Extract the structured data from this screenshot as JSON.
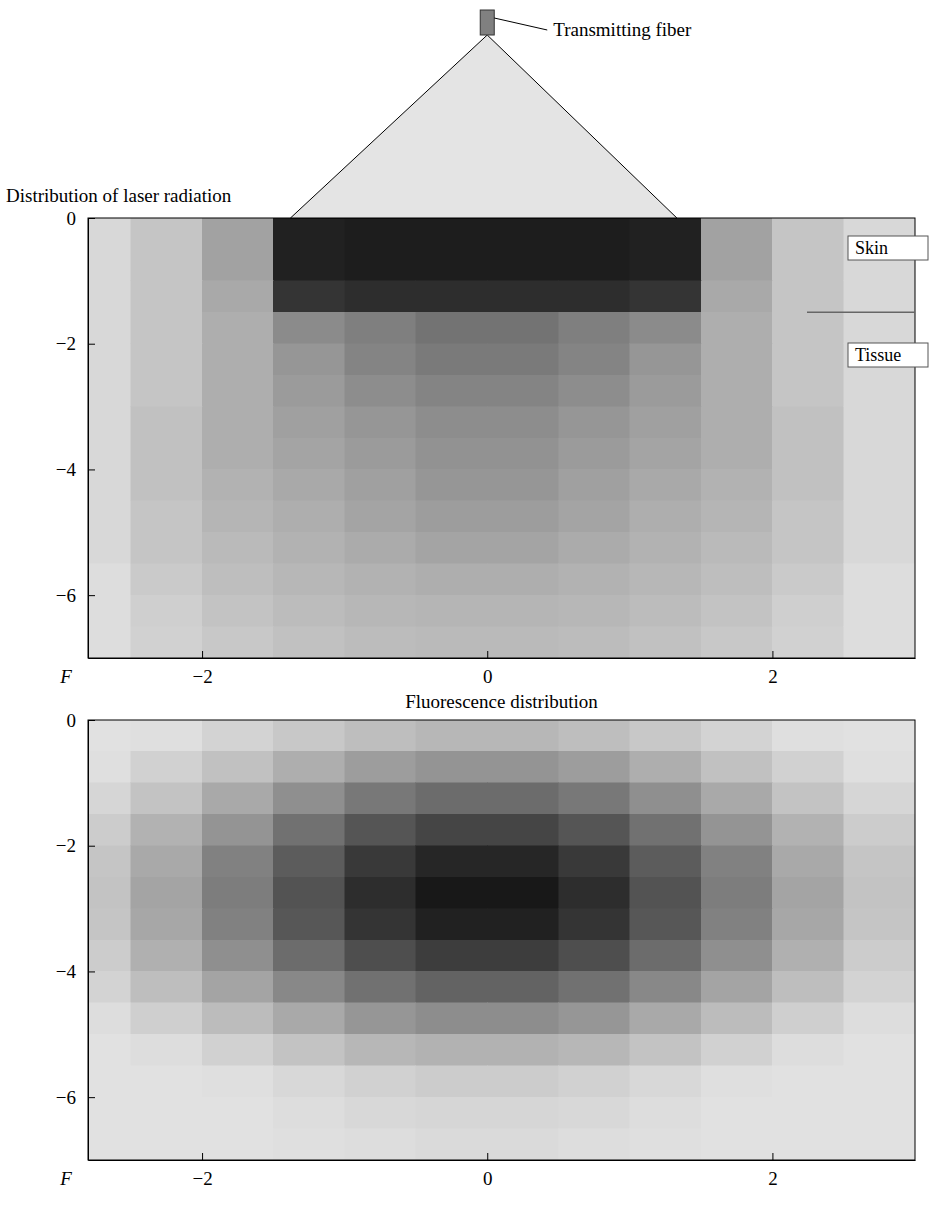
{
  "chart_data": [
    {
      "type": "heatmap",
      "title": "Distribution of laser radiation",
      "xlabel": "F",
      "annotations": [
        "Transmitting fiber",
        "Skin",
        "Tissue"
      ],
      "xlim": [
        -2.8,
        3.0
      ],
      "ylim": [
        -7,
        0
      ],
      "xticks": [
        {
          "value": -2,
          "label": "−2"
        },
        0,
        2
      ],
      "yticks": [
        0,
        {
          "value": -2,
          "label": "−2"
        },
        {
          "value": -4,
          "label": "−4"
        },
        {
          "value": -6,
          "label": "−6"
        }
      ],
      "zlim": [
        0,
        1
      ],
      "x": [
        -2.75,
        -2.25,
        -1.75,
        -1.25,
        -0.75,
        -0.25,
        0.25,
        0.75,
        1.25,
        1.75,
        2.25,
        2.75
      ],
      "y": [
        -0.25,
        -0.75,
        -1.25,
        -1.75,
        -2.25,
        -2.75,
        -3.25,
        -3.75,
        -4.25,
        -4.75,
        -5.25,
        -5.75,
        -6.25,
        -6.75
      ],
      "values": [
        [
          0.12,
          0.2,
          0.35,
          0.9,
          0.92,
          0.92,
          0.92,
          0.92,
          0.9,
          0.35,
          0.2,
          0.12
        ],
        [
          0.12,
          0.2,
          0.35,
          0.9,
          0.92,
          0.92,
          0.92,
          0.92,
          0.9,
          0.35,
          0.2,
          0.12
        ],
        [
          0.12,
          0.2,
          0.32,
          0.82,
          0.85,
          0.85,
          0.85,
          0.85,
          0.82,
          0.32,
          0.2,
          0.12
        ],
        [
          0.12,
          0.2,
          0.3,
          0.45,
          0.5,
          0.55,
          0.55,
          0.5,
          0.45,
          0.3,
          0.2,
          0.12
        ],
        [
          0.12,
          0.2,
          0.3,
          0.4,
          0.48,
          0.52,
          0.52,
          0.48,
          0.4,
          0.3,
          0.2,
          0.12
        ],
        [
          0.12,
          0.2,
          0.3,
          0.38,
          0.44,
          0.48,
          0.48,
          0.44,
          0.38,
          0.3,
          0.2,
          0.12
        ],
        [
          0.12,
          0.22,
          0.3,
          0.36,
          0.4,
          0.44,
          0.44,
          0.4,
          0.36,
          0.3,
          0.22,
          0.12
        ],
        [
          0.12,
          0.22,
          0.3,
          0.34,
          0.38,
          0.42,
          0.42,
          0.38,
          0.34,
          0.3,
          0.22,
          0.12
        ],
        [
          0.12,
          0.22,
          0.28,
          0.32,
          0.36,
          0.4,
          0.4,
          0.36,
          0.32,
          0.28,
          0.22,
          0.12
        ],
        [
          0.12,
          0.2,
          0.27,
          0.3,
          0.34,
          0.37,
          0.37,
          0.34,
          0.3,
          0.27,
          0.2,
          0.12
        ],
        [
          0.12,
          0.2,
          0.25,
          0.28,
          0.31,
          0.34,
          0.34,
          0.31,
          0.28,
          0.25,
          0.2,
          0.12
        ],
        [
          0.1,
          0.18,
          0.23,
          0.26,
          0.28,
          0.3,
          0.3,
          0.28,
          0.26,
          0.23,
          0.18,
          0.1
        ],
        [
          0.1,
          0.16,
          0.21,
          0.24,
          0.26,
          0.27,
          0.27,
          0.26,
          0.24,
          0.21,
          0.16,
          0.1
        ],
        [
          0.1,
          0.15,
          0.19,
          0.22,
          0.24,
          0.25,
          0.25,
          0.24,
          0.22,
          0.19,
          0.15,
          0.1
        ]
      ]
    },
    {
      "type": "heatmap",
      "title": "Fluorescence distribution",
      "xlabel": "F",
      "xlim": [
        -2.8,
        3.0
      ],
      "ylim": [
        -7,
        0
      ],
      "xticks": [
        {
          "value": -2,
          "label": "−2"
        },
        0,
        2
      ],
      "yticks": [
        0,
        {
          "value": -2,
          "label": "−2"
        },
        {
          "value": -4,
          "label": "−4"
        },
        {
          "value": -6,
          "label": "−6"
        }
      ],
      "zlim": [
        0,
        1
      ],
      "x": [
        -2.75,
        -2.25,
        -1.75,
        -1.25,
        -0.75,
        -0.25,
        0.25,
        0.75,
        1.25,
        1.75,
        2.25,
        2.75
      ],
      "y": [
        -0.25,
        -0.75,
        -1.25,
        -1.75,
        -2.25,
        -2.75,
        -3.25,
        -3.75,
        -4.25,
        -4.75,
        -5.25,
        -5.75,
        -6.25,
        -6.75
      ],
      "values": [
        [
          0.08,
          0.09,
          0.14,
          0.19,
          0.23,
          0.26,
          0.26,
          0.23,
          0.19,
          0.14,
          0.09,
          0.08
        ],
        [
          0.09,
          0.15,
          0.22,
          0.3,
          0.37,
          0.41,
          0.41,
          0.37,
          0.3,
          0.22,
          0.15,
          0.09
        ],
        [
          0.13,
          0.21,
          0.32,
          0.43,
          0.53,
          0.58,
          0.58,
          0.53,
          0.43,
          0.32,
          0.21,
          0.13
        ],
        [
          0.17,
          0.28,
          0.41,
          0.56,
          0.68,
          0.75,
          0.75,
          0.68,
          0.56,
          0.41,
          0.28,
          0.17
        ],
        [
          0.2,
          0.32,
          0.49,
          0.65,
          0.8,
          0.88,
          0.88,
          0.8,
          0.65,
          0.49,
          0.32,
          0.2
        ],
        [
          0.21,
          0.34,
          0.51,
          0.69,
          0.85,
          0.94,
          0.94,
          0.85,
          0.69,
          0.51,
          0.34,
          0.21
        ],
        [
          0.2,
          0.33,
          0.49,
          0.67,
          0.82,
          0.9,
          0.9,
          0.82,
          0.67,
          0.49,
          0.33,
          0.2
        ],
        [
          0.17,
          0.29,
          0.43,
          0.58,
          0.71,
          0.78,
          0.78,
          0.71,
          0.58,
          0.43,
          0.29,
          0.17
        ],
        [
          0.14,
          0.23,
          0.34,
          0.46,
          0.56,
          0.62,
          0.62,
          0.56,
          0.46,
          0.34,
          0.23,
          0.14
        ],
        [
          0.1,
          0.16,
          0.24,
          0.32,
          0.4,
          0.44,
          0.44,
          0.4,
          0.32,
          0.24,
          0.16,
          0.1
        ],
        [
          0.08,
          0.1,
          0.15,
          0.21,
          0.26,
          0.28,
          0.28,
          0.26,
          0.21,
          0.15,
          0.1,
          0.08
        ],
        [
          0.08,
          0.08,
          0.09,
          0.12,
          0.15,
          0.17,
          0.17,
          0.15,
          0.12,
          0.09,
          0.08,
          0.08
        ],
        [
          0.08,
          0.08,
          0.08,
          0.1,
          0.12,
          0.13,
          0.13,
          0.12,
          0.1,
          0.08,
          0.08,
          0.08
        ],
        [
          0.08,
          0.08,
          0.08,
          0.09,
          0.1,
          0.11,
          0.11,
          0.1,
          0.09,
          0.08,
          0.08,
          0.08
        ]
      ]
    }
  ]
}
